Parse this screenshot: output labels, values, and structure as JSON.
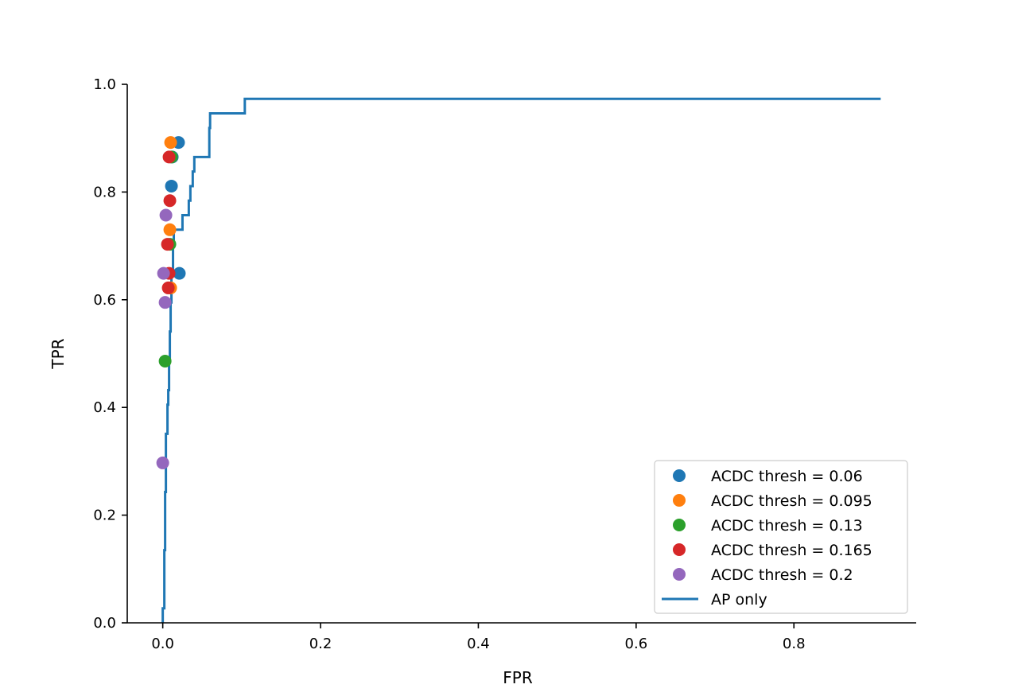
{
  "chart_data": {
    "type": "scatter",
    "title": "",
    "xlabel": "FPR",
    "ylabel": "TPR",
    "xlim": [
      -0.045,
      0.955
    ],
    "ylim": [
      0.0,
      1.0
    ],
    "xticks": [
      0.0,
      0.2,
      0.4,
      0.6,
      0.8
    ],
    "xtick_labels": [
      "0.0",
      "0.2",
      "0.4",
      "0.6",
      "0.8"
    ],
    "yticks": [
      0.0,
      0.2,
      0.4,
      0.6,
      0.8,
      1.0
    ],
    "ytick_labels": [
      "0.0",
      "0.2",
      "0.4",
      "0.6",
      "0.8",
      "1.0"
    ],
    "grid": false,
    "legend_position": "lower-right",
    "series": [
      {
        "name": "ACDC thresh = 0.06",
        "kind": "scatter",
        "color": "#1f77b4",
        "points": [
          [
            0.02,
            0.892
          ],
          [
            0.012,
            0.865
          ],
          [
            0.011,
            0.811
          ],
          [
            0.021,
            0.649
          ]
        ]
      },
      {
        "name": "ACDC thresh = 0.095",
        "kind": "scatter",
        "color": "#ff7f0e",
        "points": [
          [
            0.01,
            0.892
          ],
          [
            0.009,
            0.73
          ],
          [
            0.01,
            0.622
          ]
        ]
      },
      {
        "name": "ACDC thresh = 0.13",
        "kind": "scatter",
        "color": "#2ca02c",
        "points": [
          [
            0.011,
            0.865
          ],
          [
            0.009,
            0.703
          ],
          [
            0.003,
            0.486
          ]
        ]
      },
      {
        "name": "ACDC thresh = 0.165",
        "kind": "scatter",
        "color": "#d62728",
        "points": [
          [
            0.008,
            0.865
          ],
          [
            0.009,
            0.784
          ],
          [
            0.006,
            0.703
          ],
          [
            0.008,
            0.649
          ],
          [
            0.007,
            0.622
          ]
        ]
      },
      {
        "name": "ACDC thresh = 0.2",
        "kind": "scatter",
        "color": "#9467bd",
        "points": [
          [
            0.004,
            0.757
          ],
          [
            0.001,
            0.649
          ],
          [
            0.003,
            0.595
          ],
          [
            0.0,
            0.297
          ]
        ]
      },
      {
        "name": "AP only",
        "kind": "line",
        "color": "#1f77b4",
        "points": [
          [
            0.0,
            0.0
          ],
          [
            0.0,
            0.027
          ],
          [
            0.002,
            0.027
          ],
          [
            0.002,
            0.135
          ],
          [
            0.003,
            0.135
          ],
          [
            0.003,
            0.243
          ],
          [
            0.004,
            0.243
          ],
          [
            0.004,
            0.351
          ],
          [
            0.006,
            0.351
          ],
          [
            0.006,
            0.405
          ],
          [
            0.007,
            0.405
          ],
          [
            0.007,
            0.432
          ],
          [
            0.008,
            0.432
          ],
          [
            0.008,
            0.486
          ],
          [
            0.009,
            0.486
          ],
          [
            0.009,
            0.541
          ],
          [
            0.01,
            0.541
          ],
          [
            0.01,
            0.595
          ],
          [
            0.011,
            0.595
          ],
          [
            0.011,
            0.649
          ],
          [
            0.013,
            0.649
          ],
          [
            0.013,
            0.703
          ],
          [
            0.014,
            0.703
          ],
          [
            0.014,
            0.73
          ],
          [
            0.025,
            0.73
          ],
          [
            0.025,
            0.757
          ],
          [
            0.033,
            0.757
          ],
          [
            0.033,
            0.784
          ],
          [
            0.035,
            0.784
          ],
          [
            0.035,
            0.811
          ],
          [
            0.038,
            0.811
          ],
          [
            0.038,
            0.838
          ],
          [
            0.04,
            0.838
          ],
          [
            0.04,
            0.865
          ],
          [
            0.059,
            0.865
          ],
          [
            0.059,
            0.919
          ],
          [
            0.06,
            0.919
          ],
          [
            0.06,
            0.946
          ],
          [
            0.104,
            0.946
          ],
          [
            0.104,
            0.973
          ],
          [
            0.91,
            0.973
          ]
        ]
      }
    ]
  }
}
